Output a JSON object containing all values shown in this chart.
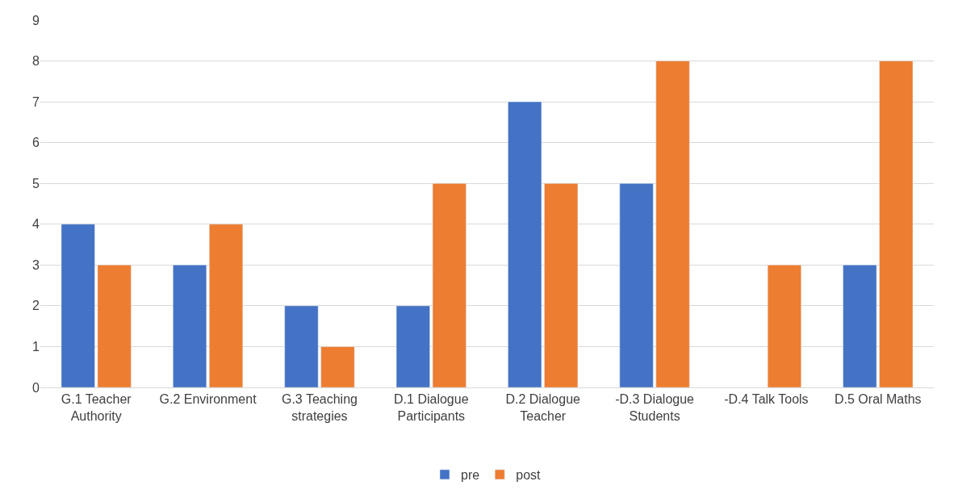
{
  "chart_data": {
    "type": "bar",
    "categories": [
      "G.1 Teacher Authority",
      "G.2 Environment",
      "G.3 Teaching strategies",
      "D.1 Dialogue Participants",
      "D.2 Dialogue Teacher",
      "-D.3 Dialogue Students",
      "-D.4 Talk Tools",
      "D.5 Oral Maths"
    ],
    "series": [
      {
        "name": "pre",
        "color": "#4472c4",
        "values": [
          4,
          3,
          2,
          2,
          7,
          5,
          null,
          3
        ]
      },
      {
        "name": "post",
        "color": "#ed7d31",
        "values": [
          3,
          4,
          1,
          5,
          5,
          8,
          3,
          8
        ]
      }
    ],
    "ylim": [
      0,
      9
    ],
    "yticks": [
      0,
      1,
      2,
      3,
      4,
      5,
      6,
      7,
      8,
      9
    ],
    "grid": "y",
    "legend": "bottom"
  }
}
